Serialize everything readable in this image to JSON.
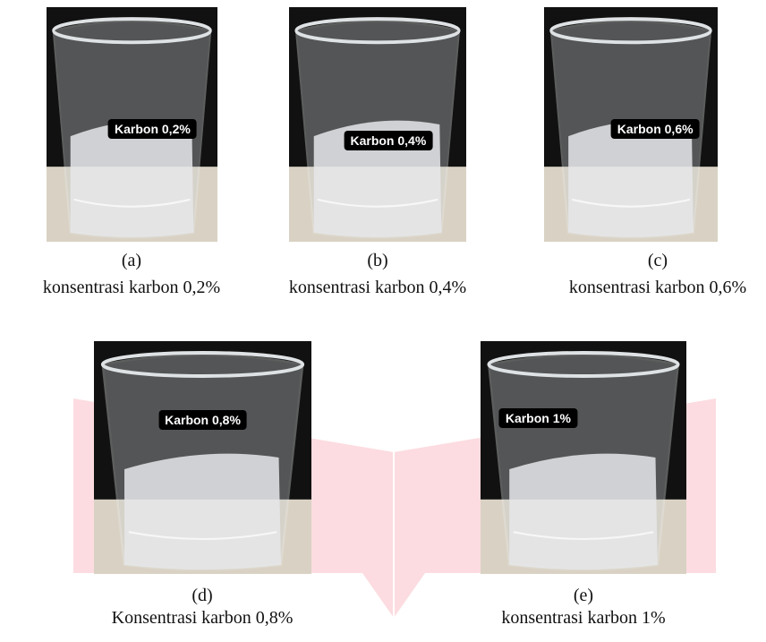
{
  "panels": [
    {
      "tag": "Karbon 0,2%",
      "letter": "(a)",
      "caption": "konsentrasi karbon 0,2%"
    },
    {
      "tag": "Karbon 0,4%",
      "letter": "(b)",
      "caption": "konsentrasi karbon 0,4%"
    },
    {
      "tag": "Karbon 0,6%",
      "letter": "(c)",
      "caption": "konsentrasi karbon 0,6%"
    },
    {
      "tag": "Karbon 0,8%",
      "letter": "(d)",
      "caption": "Konsentrasi karbon 0,8%"
    },
    {
      "tag": "Karbon 1%",
      "letter": "(e)",
      "caption": "konsentrasi karbon 1%"
    }
  ]
}
